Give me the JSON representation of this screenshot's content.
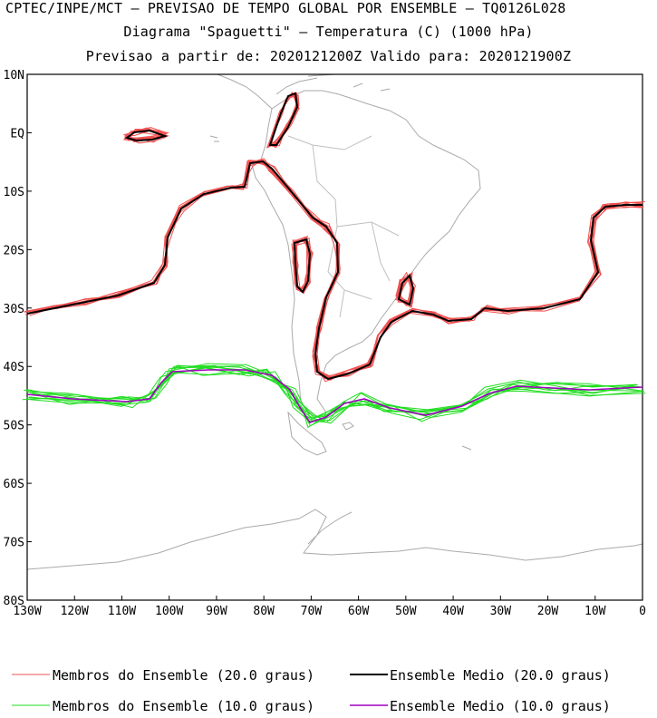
{
  "header": {
    "line1": "CPTEC/INPE/MCT – PREVISAO DE TEMPO GLOBAL POR ENSEMBLE – TQ0126L028",
    "line2": "Diagrama \"Spaguetti\" – Temperatura (C) (1000 hPa)",
    "line3": "Previsao a partir de: 2020121200Z  Valido para: 2020121900Z"
  },
  "map": {
    "lat_labels": [
      "10N",
      "EQ",
      "10S",
      "20S",
      "30S",
      "40S",
      "50S",
      "60S",
      "70S",
      "80S"
    ],
    "lon_labels": [
      "130W",
      "120W",
      "110W",
      "100W",
      "90W",
      "80W",
      "70W",
      "60W",
      "50W",
      "40W",
      "30W",
      "20W",
      "10W",
      "0"
    ],
    "lat_range": [
      -80,
      10
    ],
    "lon_range": [
      -130,
      0
    ],
    "coastline_color": "#aaaaaa"
  },
  "legend": {
    "items": [
      {
        "label": "Membros do Ensemble (20.0 graus)",
        "color": "#f05050"
      },
      {
        "label": "Ensemble Medio (20.0 graus)",
        "color": "#000000"
      },
      {
        "label": "Membros do Ensemble (10.0 graus)",
        "color": "#20dd20"
      },
      {
        "label": "Ensemble Medio (10.0 graus)",
        "color": "#a000c0"
      }
    ]
  }
}
